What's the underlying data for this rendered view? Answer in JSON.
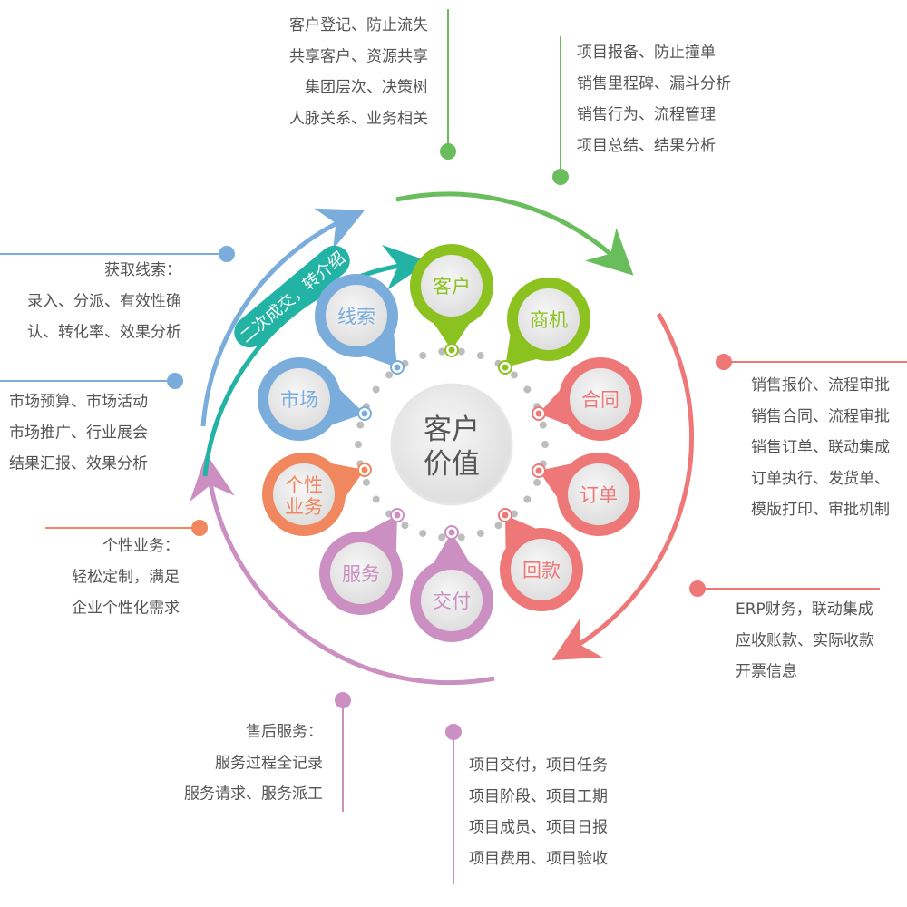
{
  "colors": {
    "blue": "#7aaddc",
    "green": "#8cc21f",
    "outer_green": "#69bd5c",
    "teal": "#22b3a4",
    "red": "#ee7878",
    "orange": "#f0875e",
    "purple": "#cc8fc1",
    "text": "#555555",
    "dot": "#bdbdbd"
  },
  "center": {
    "line1": "客户",
    "line2": "价值"
  },
  "teal_banner": "二次成交，转介绍",
  "nodes": [
    {
      "id": "customer",
      "label": "客户",
      "color": "green"
    },
    {
      "id": "opportunity",
      "label": "商机",
      "color": "green"
    },
    {
      "id": "contract",
      "label": "合同",
      "color": "red"
    },
    {
      "id": "order",
      "label": "订单",
      "color": "red"
    },
    {
      "id": "payment",
      "label": "回款",
      "color": "red"
    },
    {
      "id": "delivery",
      "label": "交付",
      "color": "purple"
    },
    {
      "id": "service",
      "label": "服务",
      "color": "purple"
    },
    {
      "id": "custom",
      "label": "个性业务",
      "line1": "个性",
      "line2": "业务",
      "color": "orange"
    },
    {
      "id": "market",
      "label": "市场",
      "color": "blue"
    },
    {
      "id": "leads",
      "label": "线索",
      "color": "blue"
    }
  ],
  "descriptions": {
    "customer": [
      "客户登记、防止流失",
      "共享客户、资源共享",
      "集团层次、决策树",
      "人脉关系、业务相关"
    ],
    "opportunity": [
      "项目报备、防止撞单",
      "销售里程碑、漏斗分析",
      "销售行为、流程管理",
      "项目总结、结果分析"
    ],
    "leads": [
      "获取线索：",
      "录入、分派、有效性确",
      "认、转化率、效果分析"
    ],
    "market": [
      "市场预算、市场活动",
      "市场推广、行业展会",
      "结果汇报、效果分析"
    ],
    "custom": [
      "个性业务：",
      "轻松定制，满足",
      "企业个性化需求"
    ],
    "service": [
      "售后服务：",
      "服务过程全记录",
      "服务请求、服务派工"
    ],
    "delivery": [
      "项目交付，项目任务",
      "项目阶段、项目工期",
      "项目成员、项目日报",
      "项目费用、项目验收"
    ],
    "contract_order": [
      "销售报价、流程审批",
      "销售合同、流程审批",
      "销售订单、联动集成",
      "订单执行、发货单、",
      "模版打印、审批机制"
    ],
    "payment": [
      "ERP财务，联动集成",
      "应收账款、实际收款",
      "开票信息"
    ]
  }
}
